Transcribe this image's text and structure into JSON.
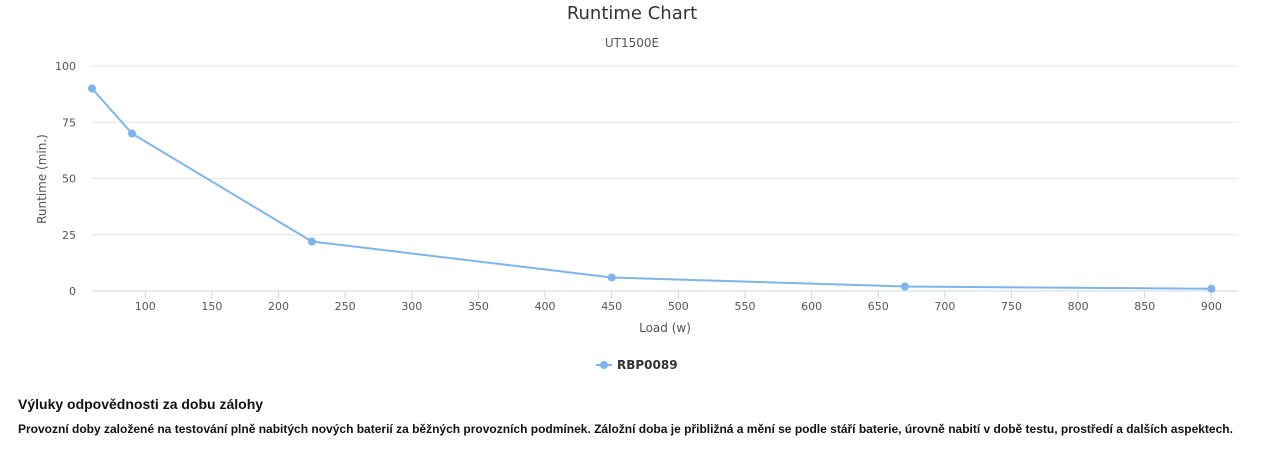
{
  "chart_data": {
    "type": "line",
    "title": "Runtime Chart",
    "subtitle": "UT1500E",
    "xlabel": "Load (w)",
    "ylabel": "Runtime (min.)",
    "xlim": [
      60,
      920
    ],
    "ylim": [
      0,
      100
    ],
    "x_ticks": [
      100,
      150,
      200,
      250,
      300,
      350,
      400,
      450,
      500,
      550,
      600,
      650,
      700,
      750,
      800,
      850,
      900
    ],
    "y_ticks": [
      0,
      25,
      50,
      75,
      100
    ],
    "grid": true,
    "legend": "bottom-center",
    "series": [
      {
        "name": "RBP0089",
        "color": "#7cb5ec",
        "points": [
          {
            "x": 60,
            "y": 90
          },
          {
            "x": 90,
            "y": 70
          },
          {
            "x": 225,
            "y": 22
          },
          {
            "x": 450,
            "y": 6
          },
          {
            "x": 670,
            "y": 2
          },
          {
            "x": 900,
            "y": 1
          }
        ]
      }
    ]
  },
  "disclaimer": {
    "title": "Výluky odpovědnosti za dobu zálohy",
    "text": "Provozní doby založené na testování plně nabitých nových baterií za běžných provozních podmínek. Záložní doba je přibližná a mění se podle stáří baterie, úrovně nabití v době testu, prostředí a dalších aspektech."
  }
}
